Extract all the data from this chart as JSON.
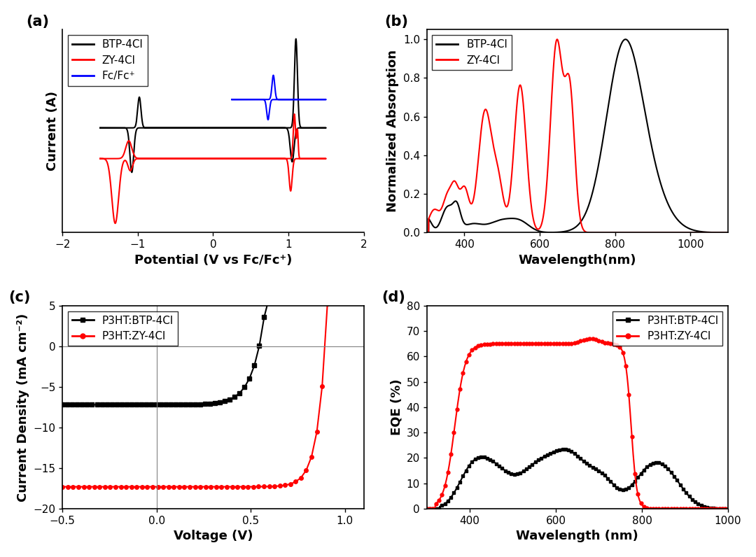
{
  "panel_a": {
    "title": "(a)",
    "xlabel": "Potential (V vs Fc/Fc⁺)",
    "ylabel": "Current (A)",
    "xlim": [
      -2,
      2
    ],
    "xticks": [
      -2,
      -1,
      0,
      1,
      2
    ],
    "legend": [
      "BTP-4Cl",
      "ZY-4Cl",
      "Fc/Fc⁺"
    ],
    "colors": [
      "black",
      "red",
      "blue"
    ]
  },
  "panel_b": {
    "title": "(b)",
    "xlabel": "Wavelength(nm)",
    "ylabel": "Normalized Absorption",
    "xlim": [
      300,
      1100
    ],
    "ylim": [
      0.0,
      1.05
    ],
    "xticks": [
      400,
      600,
      800,
      1000
    ],
    "legend": [
      "BTP-4Cl",
      "ZY-4Cl"
    ],
    "colors": [
      "black",
      "red"
    ]
  },
  "panel_c": {
    "title": "(c)",
    "xlabel": "Voltage (V)",
    "ylabel": "Current Density (mA cm⁻²)",
    "xlim": [
      -0.5,
      1.1
    ],
    "ylim": [
      -20,
      5
    ],
    "xticks": [
      -0.5,
      0.0,
      0.5,
      1.0
    ],
    "legend": [
      "P3HT:BTP-4Cl",
      "P3HT:ZY-4Cl"
    ],
    "colors": [
      "black",
      "red"
    ]
  },
  "panel_d": {
    "title": "(d)",
    "xlabel": "Wavelength (nm)",
    "ylabel": "EQE (%)",
    "xlim": [
      300,
      1000
    ],
    "ylim": [
      0,
      80
    ],
    "xticks": [
      400,
      600,
      800,
      1000
    ],
    "legend": [
      "P3HT:BTP-4Cl",
      "P3HT:ZY-4Cl"
    ],
    "colors": [
      "black",
      "red"
    ]
  },
  "figure_bg": "white",
  "label_fontsize": 13,
  "tick_fontsize": 11,
  "legend_fontsize": 11,
  "panel_label_fontsize": 15
}
